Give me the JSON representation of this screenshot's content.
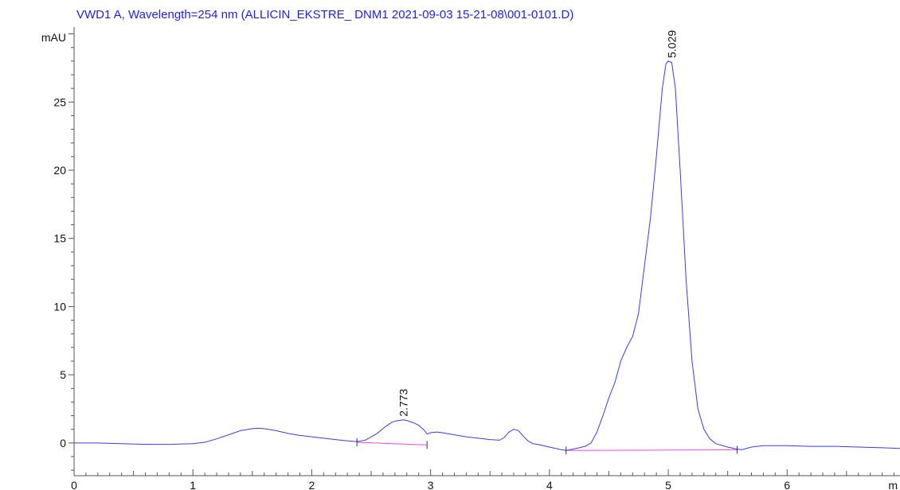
{
  "chart_data": {
    "type": "line",
    "title": "VWD1 A, Wavelength=254 nm (ALLICIN_EKSTRE_ DNM1 2021-09-03 15-21-08\\001-0101.D)",
    "ylabel": "mAU",
    "xlabel": "m",
    "xlim": [
      0,
      6.95
    ],
    "ylim": [
      -2.4,
      30.5
    ],
    "x_ticks": [
      0,
      1,
      2,
      3,
      4,
      5,
      6
    ],
    "y_ticks": [
      0,
      5,
      10,
      15,
      20,
      25
    ],
    "series_color": "#3a3af0",
    "baseline_color": "#ff40ff",
    "series": [
      {
        "x": [
          0,
          0.2,
          0.4,
          0.6,
          0.8,
          1.0,
          1.1,
          1.2,
          1.3,
          1.4,
          1.5,
          1.55,
          1.6,
          1.7,
          1.8,
          1.9,
          2.0,
          2.1,
          2.2,
          2.3,
          2.38,
          2.45,
          2.55,
          2.62,
          2.68,
          2.73,
          2.773,
          2.8,
          2.85,
          2.9,
          2.95,
          2.97,
          3.0,
          3.05,
          3.1,
          3.2,
          3.3,
          3.4,
          3.5,
          3.58,
          3.62,
          3.66,
          3.7,
          3.74,
          3.78,
          3.82,
          3.86,
          3.9,
          4.0,
          4.1,
          4.14,
          4.2,
          4.3,
          4.35,
          4.4,
          4.45,
          4.5,
          4.55,
          4.6,
          4.65,
          4.7,
          4.75,
          4.8,
          4.85,
          4.9,
          4.95,
          4.98,
          5.0,
          5.029,
          5.06,
          5.1,
          5.15,
          5.2,
          5.25,
          5.3,
          5.35,
          5.4,
          5.5,
          5.58,
          5.62,
          5.7,
          5.8,
          6.0,
          6.2,
          6.4,
          6.6,
          6.8,
          6.95
        ],
        "y": [
          0.0,
          0.0,
          -0.05,
          -0.1,
          -0.1,
          -0.05,
          0.05,
          0.3,
          0.6,
          0.9,
          1.05,
          1.08,
          1.05,
          0.9,
          0.7,
          0.55,
          0.45,
          0.35,
          0.25,
          0.15,
          0.1,
          0.2,
          0.7,
          1.2,
          1.55,
          1.65,
          1.7,
          1.65,
          1.5,
          1.3,
          0.9,
          0.65,
          0.75,
          0.8,
          0.75,
          0.6,
          0.45,
          0.35,
          0.25,
          0.2,
          0.4,
          0.8,
          1.0,
          0.9,
          0.5,
          0.15,
          -0.05,
          -0.1,
          -0.3,
          -0.5,
          -0.55,
          -0.45,
          -0.25,
          0.0,
          0.8,
          2.0,
          3.3,
          4.4,
          6.0,
          7.0,
          7.8,
          9.5,
          13.0,
          16.5,
          21.0,
          26.0,
          27.8,
          28.0,
          27.9,
          26.0,
          20.0,
          12.0,
          6.0,
          2.5,
          1.0,
          0.3,
          -0.05,
          -0.3,
          -0.45,
          -0.5,
          -0.3,
          -0.2,
          -0.2,
          -0.25,
          -0.25,
          -0.3,
          -0.35,
          -0.4
        ]
      }
    ],
    "baselines": [
      {
        "x": [
          2.38,
          2.97
        ],
        "y": [
          0.05,
          -0.15
        ]
      },
      {
        "x": [
          4.14,
          5.58
        ],
        "y": [
          -0.55,
          -0.5
        ]
      }
    ],
    "peaks": [
      {
        "label": "2.773",
        "x": 2.773,
        "y": 1.7
      },
      {
        "label": "5.029",
        "x": 5.029,
        "y": 28.0
      }
    ]
  }
}
